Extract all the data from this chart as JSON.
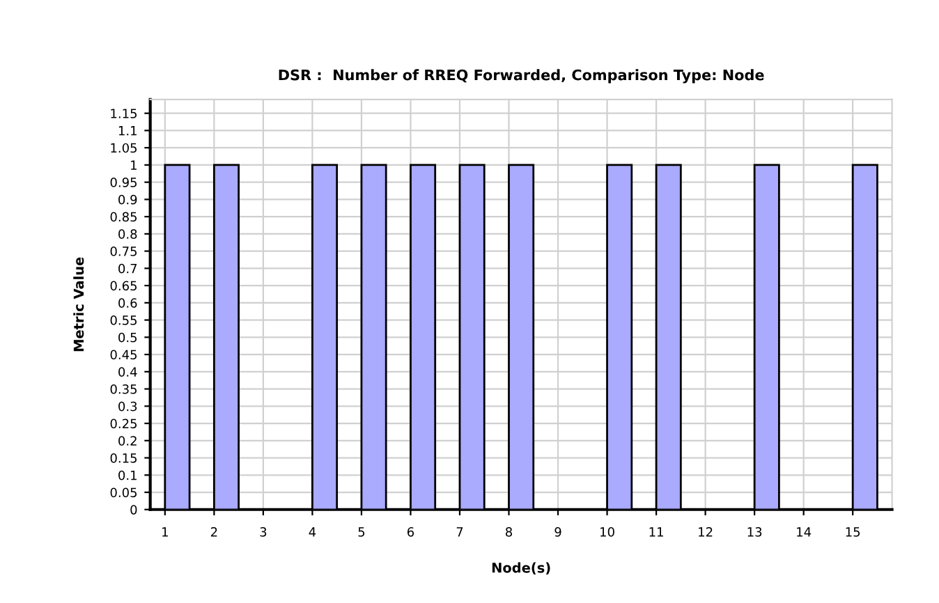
{
  "chart_data": {
    "type": "bar",
    "title": "DSR :  Number of RREQ Forwarded, Comparison Type: Node",
    "xlabel": "Node(s)",
    "ylabel": "Metric Value",
    "categories": [
      "1",
      "2",
      "3",
      "4",
      "5",
      "6",
      "7",
      "8",
      "9",
      "10",
      "11",
      "12",
      "13",
      "14",
      "15"
    ],
    "values": [
      1,
      1,
      0,
      1,
      1,
      1,
      1,
      1,
      0,
      1,
      1,
      0,
      1,
      0,
      1
    ],
    "color": "#aaaaff",
    "ylim": [
      0,
      1.19
    ],
    "yticks": [
      0,
      0.05,
      0.1,
      0.15,
      0.2,
      0.25,
      0.3,
      0.35,
      0.4,
      0.45,
      0.5,
      0.55,
      0.6,
      0.65,
      0.7,
      0.75,
      0.8,
      0.85,
      0.9,
      0.95,
      1,
      1.05,
      1.1,
      1.15
    ],
    "grid": true,
    "legend": false
  }
}
